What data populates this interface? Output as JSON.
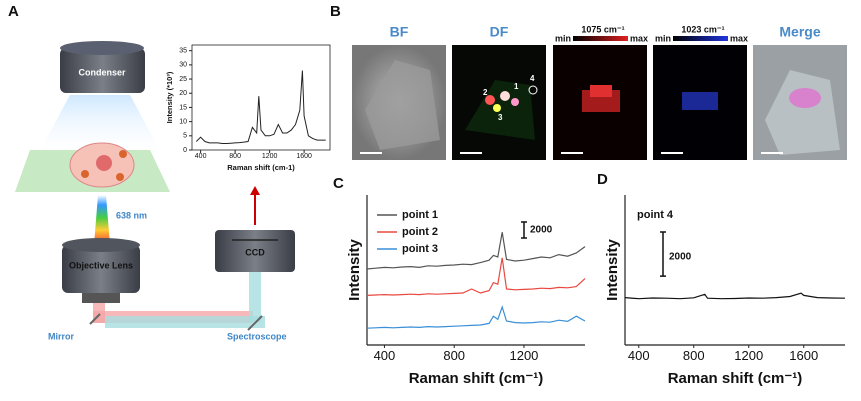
{
  "panel_labels": [
    "A",
    "B",
    "C",
    "D"
  ],
  "panel_a": {
    "condenser": "Condenser",
    "laser": "638 nm",
    "objective": "Objective Lens",
    "ccd": "CCD",
    "mirror": "Mirror",
    "spectroscope": "Spectroscope"
  },
  "panel_b": {
    "titles": [
      "BF",
      "DF",
      "Merge"
    ],
    "channels": [
      {
        "label": "1075 cm⁻¹",
        "min": "min",
        "max": "max",
        "color": "#e02020"
      },
      {
        "label": "1023 cm⁻¹",
        "min": "min",
        "max": "max",
        "color": "#2035e0"
      }
    ],
    "points": [
      "1",
      "2",
      "3",
      "4"
    ]
  },
  "chart_data": [
    {
      "type": "line",
      "x_label": "Raman shift (cm-1)",
      "y_label": "Intensity (*10³)",
      "x": [
        350,
        400,
        450,
        500,
        550,
        600,
        650,
        700,
        750,
        800,
        850,
        900,
        950,
        1000,
        1050,
        1075,
        1100,
        1150,
        1200,
        1250,
        1300,
        1350,
        1400,
        1450,
        1500,
        1550,
        1580,
        1600,
        1650,
        1700,
        1750,
        1800,
        1850
      ],
      "series": [
        {
          "color": "#222222",
          "values": [
            3,
            4.5,
            3,
            2.5,
            2.5,
            2.5,
            2.3,
            2.3,
            2.4,
            2.5,
            2.6,
            2.8,
            3,
            8,
            6,
            19,
            7,
            5,
            5,
            5.5,
            9,
            6,
            6,
            7,
            9,
            14,
            28,
            12,
            5,
            4,
            3.5,
            3.5,
            3.5
          ]
        }
      ],
      "xlim": [
        300,
        1900
      ],
      "xticks": [
        400,
        800,
        1200,
        1600
      ],
      "ylim": [
        0,
        37
      ],
      "yticks": [
        0,
        5,
        10,
        15,
        20,
        25,
        30,
        35
      ]
    },
    {
      "type": "line",
      "x_label": "Raman shift (cm⁻¹)",
      "y_label": "Intensity",
      "scale_bar": 2000,
      "x": [
        300,
        350,
        400,
        450,
        500,
        550,
        600,
        650,
        700,
        750,
        800,
        850,
        900,
        950,
        1000,
        1025,
        1050,
        1075,
        1100,
        1150,
        1200,
        1250,
        1300,
        1350,
        1400,
        1450,
        1500,
        1550
      ],
      "series": [
        {
          "name": "point 1",
          "color": "#555555",
          "values": [
            9500,
            9600,
            9700,
            9650,
            9750,
            9800,
            9700,
            9900,
            9850,
            9950,
            10000,
            10100,
            10050,
            10300,
            10600,
            11200,
            11000,
            14100,
            10700,
            10500,
            10600,
            10800,
            11000,
            10900,
            11300,
            11100,
            11500,
            12300
          ]
        },
        {
          "name": "point 2",
          "color": "#e8483f",
          "values": [
            6200,
            6250,
            6300,
            6250,
            6300,
            6350,
            6300,
            6400,
            6350,
            6400,
            6450,
            6500,
            7000,
            6500,
            6800,
            7800,
            7600,
            10900,
            7000,
            6900,
            6950,
            7000,
            7100,
            7050,
            7200,
            7150,
            7300,
            8300
          ]
        },
        {
          "name": "point 3",
          "color": "#3a8fd6",
          "values": [
            2100,
            2150,
            2200,
            2150,
            2200,
            2250,
            2200,
            2300,
            2250,
            2300,
            2350,
            2400,
            2450,
            2500,
            2700,
            3600,
            3200,
            4750,
            3000,
            2800,
            2750,
            2800,
            2900,
            2850,
            3100,
            2950,
            3600,
            3000
          ]
        }
      ],
      "xlim": [
        300,
        1550
      ],
      "xticks": [
        400,
        800,
        1200
      ],
      "ylim": [
        0,
        18750
      ]
    },
    {
      "type": "line",
      "x_label": "Raman shift (cm⁻¹)",
      "y_label": "Intensity",
      "scale_bar": 2000,
      "annotation": "point 4",
      "x": [
        300,
        400,
        500,
        600,
        700,
        800,
        880,
        900,
        1000,
        1100,
        1200,
        1300,
        1400,
        1500,
        1580,
        1600,
        1700,
        1800,
        1900
      ],
      "series": [
        {
          "color": "#111111",
          "values": [
            2150,
            2100,
            2130,
            2120,
            2100,
            2140,
            2300,
            2120,
            2100,
            2110,
            2130,
            2120,
            2150,
            2200,
            2350,
            2250,
            2150,
            2130,
            2120
          ]
        }
      ],
      "xlim": [
        300,
        1900
      ],
      "xticks": [
        400,
        800,
        1200,
        1600
      ],
      "ylim": [
        0,
        6800
      ]
    }
  ]
}
